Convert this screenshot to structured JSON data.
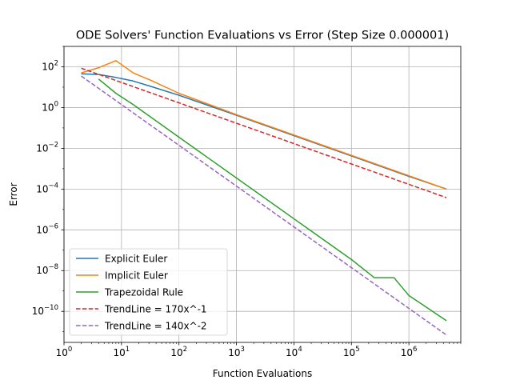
{
  "chart_data": {
    "type": "line",
    "title": "ODE Solvers' Function Evaluations vs Error (Step Size 0.000001)",
    "xlabel": "Function Evaluations",
    "ylabel": "Error",
    "xscale": "log",
    "yscale": "log",
    "xlim": [
      1,
      8000000
    ],
    "ylim": [
      3e-12,
      1000
    ],
    "grid": true,
    "legend_position": "lower-left",
    "x_ticks": [
      {
        "value": 1,
        "base": "10",
        "exp": "0"
      },
      {
        "value": 10,
        "base": "10",
        "exp": "1"
      },
      {
        "value": 100,
        "base": "10",
        "exp": "2"
      },
      {
        "value": 1000,
        "base": "10",
        "exp": "3"
      },
      {
        "value": 10000,
        "base": "10",
        "exp": "4"
      },
      {
        "value": 100000,
        "base": "10",
        "exp": "5"
      },
      {
        "value": 1000000,
        "base": "10",
        "exp": "6"
      }
    ],
    "y_ticks": [
      {
        "value": 1e-10,
        "base": "10",
        "exp": "−10"
      },
      {
        "value": 1e-08,
        "base": "10",
        "exp": "−8"
      },
      {
        "value": 1e-06,
        "base": "10",
        "exp": "−6"
      },
      {
        "value": 0.0001,
        "base": "10",
        "exp": "−4"
      },
      {
        "value": 0.01,
        "base": "10",
        "exp": "−2"
      },
      {
        "value": 1,
        "base": "10",
        "exp": "0"
      },
      {
        "value": 100,
        "base": "10",
        "exp": "2"
      }
    ],
    "series": [
      {
        "name": "Explicit Euler",
        "color": "#1f77b4",
        "dash": "solid",
        "points": [
          [
            2,
            45
          ],
          [
            4,
            42
          ],
          [
            8,
            30
          ],
          [
            16,
            20
          ],
          [
            32,
            11
          ],
          [
            100,
            4
          ],
          [
            1000,
            0.42
          ],
          [
            10000,
            0.042
          ],
          [
            100000,
            0.0042
          ],
          [
            1000000,
            0.00042
          ],
          [
            4500000,
            0.0001
          ]
        ]
      },
      {
        "name": "Implicit Euler",
        "color": "#ff7f0e",
        "dash": "solid",
        "points": [
          [
            2,
            50
          ],
          [
            4,
            90
          ],
          [
            8,
            200
          ],
          [
            16,
            50
          ],
          [
            32,
            22
          ],
          [
            100,
            5
          ],
          [
            1000,
            0.45
          ],
          [
            10000,
            0.045
          ],
          [
            100000,
            0.0045
          ],
          [
            1000000,
            0.00045
          ],
          [
            4500000,
            0.0001
          ]
        ]
      },
      {
        "name": "Trapezoidal Rule",
        "color": "#2ca02c",
        "dash": "solid",
        "points": [
          [
            4,
            25
          ],
          [
            8,
            5
          ],
          [
            16,
            1.4
          ],
          [
            100,
            0.035
          ],
          [
            1000,
            0.00035
          ],
          [
            10000,
            3.5e-06
          ],
          [
            100000,
            3.5e-08
          ],
          [
            250000,
            4.5e-09
          ],
          [
            550000,
            4.5e-09
          ],
          [
            1000000,
            6e-10
          ],
          [
            4500000,
            3.5e-11
          ]
        ]
      },
      {
        "name": "TrendLine = 170x^-1",
        "color": "#d62728",
        "dash": "dashed",
        "points": [
          [
            2,
            85
          ],
          [
            4500000,
            3.8e-05
          ]
        ]
      },
      {
        "name": "TrendLine = 140x^-2",
        "color": "#9467bd",
        "dash": "dashed",
        "points": [
          [
            2,
            35
          ],
          [
            4500000,
            6.9e-12
          ]
        ]
      }
    ]
  }
}
